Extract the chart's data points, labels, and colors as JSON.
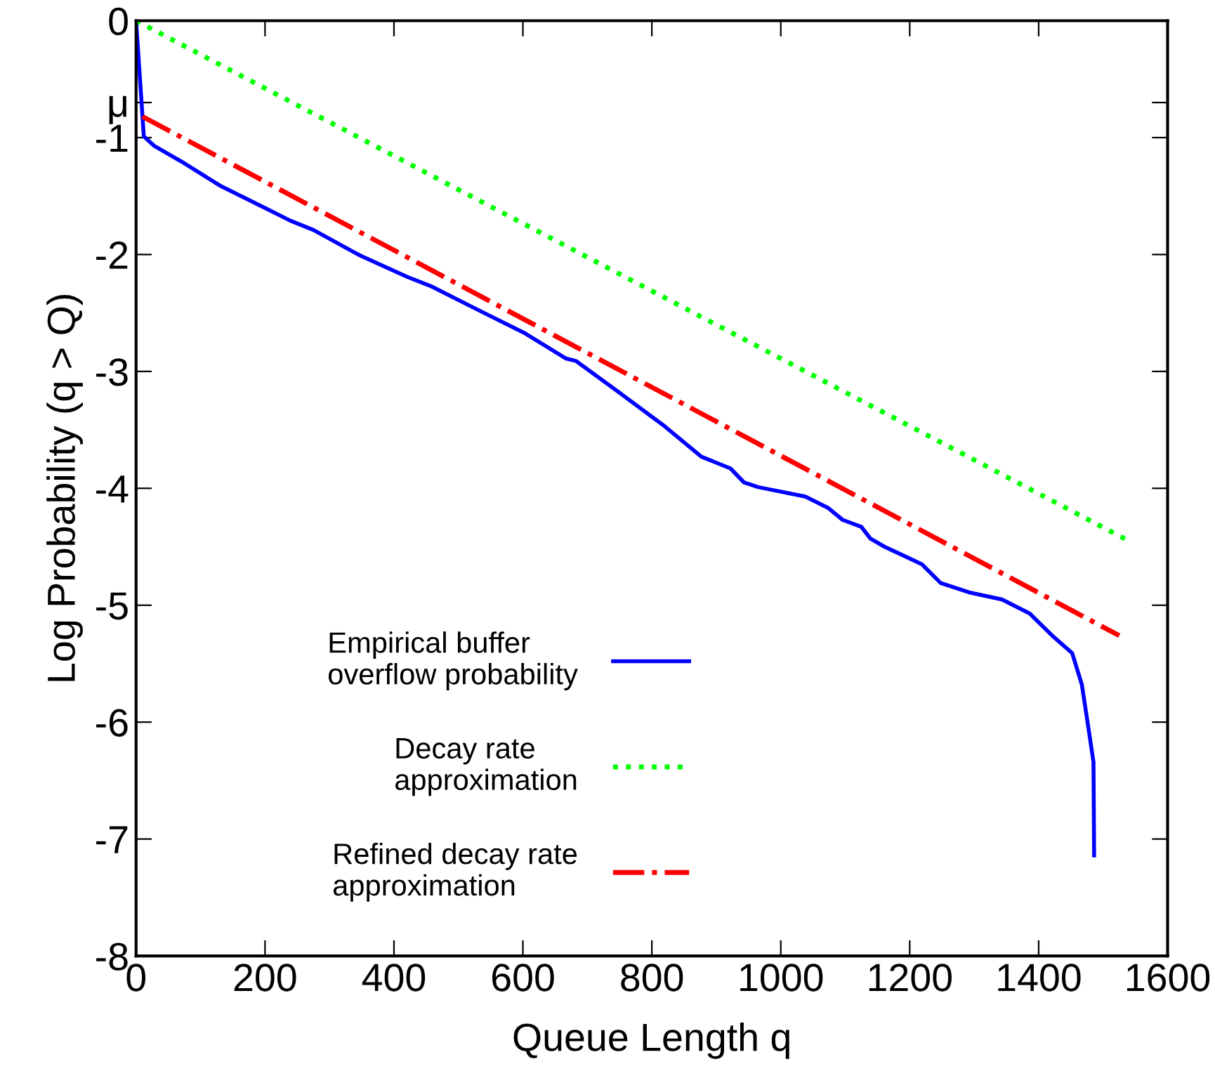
{
  "chart_data": {
    "type": "line",
    "xlabel": "Queue Length q",
    "ylabel": "Log Probability (q > Q)",
    "xlim": [
      0,
      1600
    ],
    "ylim": [
      -8,
      0
    ],
    "xticks": [
      0,
      200,
      400,
      600,
      800,
      1000,
      1200,
      1400,
      1600
    ],
    "yticks": [
      0,
      {
        "value": -0.7,
        "label": "μ"
      },
      -1,
      -2,
      -3,
      -4,
      -5,
      -6,
      -7,
      -8
    ],
    "grid": false,
    "legend": "lower left",
    "series": [
      {
        "name": "Empirical buffer\noverflow probability",
        "color": "#0000ff",
        "line_style": "solid",
        "x": [
          0,
          12,
          28,
          72,
          130,
          203,
          239,
          275,
          348,
          420,
          457,
          529,
          602,
          667,
          682,
          747,
          820,
          877,
          922,
          943,
          965,
          1038,
          1074,
          1096,
          1125,
          1139,
          1161,
          1219,
          1248,
          1292,
          1343,
          1386,
          1423,
          1452,
          1467,
          1478,
          1485,
          1486
        ],
        "values": [
          0,
          -0.99,
          -1.07,
          -1.21,
          -1.41,
          -1.61,
          -1.71,
          -1.79,
          -2.01,
          -2.19,
          -2.27,
          -2.47,
          -2.67,
          -2.89,
          -2.91,
          -3.17,
          -3.47,
          -3.73,
          -3.83,
          -3.95,
          -3.99,
          -4.07,
          -4.17,
          -4.27,
          -4.33,
          -4.43,
          -4.5,
          -4.65,
          -4.81,
          -4.89,
          -4.95,
          -5.07,
          -5.27,
          -5.41,
          -5.68,
          -6.08,
          -6.34,
          -7.14
        ]
      },
      {
        "name": "Decay rate\napproximation",
        "color": "#00ff00",
        "line_style": "dotted",
        "x": [
          0,
          1540
        ],
        "values": [
          0,
          -4.45
        ]
      },
      {
        "name": "Refined decay rate\napproximation",
        "color": "#ff0000",
        "line_style": "dashdot",
        "x": [
          10,
          1525
        ],
        "values": [
          -0.82,
          -5.26
        ]
      }
    ]
  }
}
